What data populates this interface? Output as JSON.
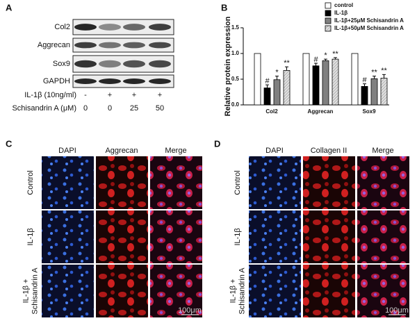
{
  "panel_labels": [
    "A",
    "B",
    "C",
    "D"
  ],
  "panel_a": {
    "rows": [
      "Col2",
      "Aggrecan",
      "Sox9",
      "GAPDH"
    ],
    "conditions": [
      {
        "name": "IL-1β (10ng/ml)",
        "values": [
          "-",
          "+",
          "+",
          "+"
        ]
      },
      {
        "name": "Schisandrin A (μM)",
        "values": [
          "0",
          "0",
          "25",
          "50"
        ]
      }
    ]
  },
  "chart_data": {
    "type": "bar",
    "y_label": "Relative protein expression",
    "categories": [
      "Col2",
      "Aggrecan",
      "Sox9"
    ],
    "series": [
      {
        "name": "control",
        "color": "#ffffff",
        "values": [
          1.0,
          1.0,
          1.0
        ]
      },
      {
        "name": "IL-1β",
        "color": "#000000",
        "values": [
          0.33,
          0.76,
          0.36
        ],
        "errors": [
          0.06,
          0.05,
          0.05
        ],
        "annotations": [
          "#",
          "#",
          "#"
        ]
      },
      {
        "name": "IL-1β+25μM Schisandrin A",
        "color": "#808080",
        "values": [
          0.49,
          0.86,
          0.51
        ],
        "errors": [
          0.07,
          0.03,
          0.05
        ],
        "annotations": [
          "*",
          "*",
          "**"
        ]
      },
      {
        "name": "IL-1β+50μM Schisandrin A",
        "color": "#d9d9d9",
        "hatch": true,
        "values": [
          0.67,
          0.89,
          0.52
        ],
        "errors": [
          0.07,
          0.03,
          0.07
        ],
        "annotations": [
          "**",
          "**",
          "**"
        ]
      }
    ],
    "ylim": [
      0,
      1.5
    ],
    "yticks": [
      {
        "value": 0,
        "label": "0.0"
      },
      {
        "value": 0.5,
        "label": "0.5"
      },
      {
        "value": 1,
        "label": "1.0"
      },
      {
        "value": 1.5,
        "label": "1.5"
      }
    ],
    "legend": "top-right"
  },
  "panel_c": {
    "columns": [
      "DAPI",
      "Aggrecan",
      "Merge"
    ],
    "rows": [
      [
        "Control"
      ],
      [
        "IL-1β"
      ],
      [
        "IL-1β +",
        "Schisandrin A"
      ]
    ],
    "scale_bar": "100μm"
  },
  "panel_d": {
    "columns": [
      "DAPI",
      "Collagen II",
      "Merge"
    ],
    "rows": [
      [
        "Control"
      ],
      [
        "IL-1β"
      ],
      [
        "IL-1β +",
        "Schisandrin A"
      ]
    ],
    "scale_bar": "100μm"
  }
}
